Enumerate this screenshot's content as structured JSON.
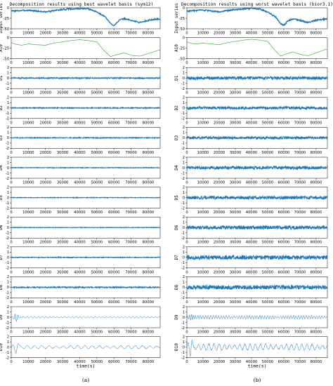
{
  "chart_data": [
    {
      "type": "line",
      "panel_label": "(a)",
      "title": "Decomposition results using best wavelet basis (sym12)",
      "xlabel": "time(s)",
      "xlim": [
        0,
        87000
      ],
      "xticks": [
        10000,
        20000,
        30000,
        40000,
        50000,
        60000,
        70000,
        80000
      ],
      "colors": {
        "signal": "#1f77b4",
        "approximation": "#2ca02c"
      },
      "rows": [
        {
          "name": "Input series",
          "ylim": [
            -50,
            0
          ],
          "yticks": [
            -50,
            -25,
            0
          ],
          "kind": "series",
          "points": [
            [
              0,
              -8
            ],
            [
              5000,
              -7
            ],
            [
              10000,
              -6
            ],
            [
              15000,
              -8
            ],
            [
              20000,
              -10
            ],
            [
              25000,
              -7
            ],
            [
              30000,
              -4
            ],
            [
              35000,
              -3
            ],
            [
              40000,
              -2
            ],
            [
              45000,
              -3
            ],
            [
              50000,
              -10
            ],
            [
              55000,
              -22
            ],
            [
              58000,
              -38
            ],
            [
              60000,
              -42
            ],
            [
              63000,
              -30
            ],
            [
              66000,
              -26
            ],
            [
              70000,
              -30
            ],
            [
              75000,
              -35
            ],
            [
              80000,
              -30
            ],
            [
              85000,
              -27
            ]
          ]
        },
        {
          "name": "A10",
          "ylim": [
            -50,
            0
          ],
          "yticks": [
            -50,
            -25,
            0
          ],
          "kind": "approx",
          "points": [
            [
              0,
              -12
            ],
            [
              3000,
              -16
            ],
            [
              6000,
              -18
            ],
            [
              10000,
              -15
            ],
            [
              15000,
              -17
            ],
            [
              20000,
              -18
            ],
            [
              25000,
              -13
            ],
            [
              30000,
              -10
            ],
            [
              35000,
              -7
            ],
            [
              40000,
              -5
            ],
            [
              45000,
              -7
            ],
            [
              50000,
              -10
            ],
            [
              54000,
              -30
            ],
            [
              58000,
              -45
            ],
            [
              62000,
              -40
            ],
            [
              66000,
              -36
            ],
            [
              70000,
              -42
            ],
            [
              75000,
              -44
            ],
            [
              80000,
              -38
            ],
            [
              86000,
              -30
            ]
          ]
        },
        {
          "name": "D1",
          "ylim": [
            -2,
            2
          ],
          "yticks": [
            -2,
            -1,
            0,
            1,
            2
          ],
          "kind": "noise",
          "amp": 0.12,
          "period": 0
        },
        {
          "name": "D2",
          "ylim": [
            -2,
            2
          ],
          "yticks": [
            -2,
            -1,
            0,
            1,
            2
          ],
          "kind": "noise",
          "amp": 0.1,
          "period": 0
        },
        {
          "name": "D3",
          "ylim": [
            -2,
            2
          ],
          "yticks": [
            -2,
            -1,
            0,
            1,
            2
          ],
          "kind": "noise",
          "amp": 0.09,
          "period": 0
        },
        {
          "name": "D4",
          "ylim": [
            -2,
            2
          ],
          "yticks": [
            -2,
            -1,
            0,
            1,
            2
          ],
          "kind": "noise",
          "amp": 0.07,
          "period": 0
        },
        {
          "name": "D5",
          "ylim": [
            -2,
            2
          ],
          "yticks": [
            -2,
            -1,
            0,
            1,
            2
          ],
          "kind": "noise",
          "amp": 0.06,
          "period": 0
        },
        {
          "name": "D6",
          "ylim": [
            -2,
            2
          ],
          "yticks": [
            -2,
            -1,
            0,
            1,
            2
          ],
          "kind": "noise",
          "amp": 0.06,
          "period": 0
        },
        {
          "name": "D7",
          "ylim": [
            -2,
            2
          ],
          "yticks": [
            -2,
            -1,
            0,
            1,
            2
          ],
          "kind": "noise",
          "amp": 0.08,
          "period": 0
        },
        {
          "name": "D8",
          "ylim": [
            -2,
            2
          ],
          "yticks": [
            -2,
            -1,
            0,
            1,
            2
          ],
          "kind": "noise",
          "amp": 0.12,
          "period": 0
        },
        {
          "name": "D9",
          "ylim": [
            -2,
            2
          ],
          "yticks": [
            -2,
            -1,
            0,
            1,
            2
          ],
          "kind": "osc",
          "amp": 0.15,
          "period": 2200,
          "burst": [
            3000,
            0.9
          ]
        },
        {
          "name": "D10",
          "ylim": [
            -2,
            2
          ],
          "yticks": [
            -2,
            -1,
            0,
            1,
            2
          ],
          "kind": "osc",
          "amp": 0.3,
          "period": 4200,
          "burst": [
            3000,
            1.3
          ]
        }
      ]
    },
    {
      "type": "line",
      "panel_label": "(b)",
      "title": "Decomposition results using worst wavelet basis (bior3.1)",
      "xlabel": "time(s)",
      "xlim": [
        0,
        87000
      ],
      "xticks": [
        10000,
        20000,
        30000,
        40000,
        50000,
        60000,
        70000,
        80000
      ],
      "colors": {
        "signal": "#1f77b4",
        "approximation": "#2ca02c"
      },
      "rows": [
        {
          "name": "Input series",
          "ylim": [
            -50,
            0
          ],
          "yticks": [
            -50,
            -25,
            0
          ],
          "kind": "series",
          "points": [
            [
              0,
              -8
            ],
            [
              5000,
              -7
            ],
            [
              10000,
              -6
            ],
            [
              15000,
              -8
            ],
            [
              20000,
              -10
            ],
            [
              25000,
              -7
            ],
            [
              30000,
              -4
            ],
            [
              35000,
              -3
            ],
            [
              40000,
              -2
            ],
            [
              45000,
              -3
            ],
            [
              50000,
              -10
            ],
            [
              55000,
              -22
            ],
            [
              58000,
              -38
            ],
            [
              60000,
              -42
            ],
            [
              63000,
              -30
            ],
            [
              66000,
              -26
            ],
            [
              70000,
              -30
            ],
            [
              75000,
              -35
            ],
            [
              80000,
              -30
            ],
            [
              85000,
              -27
            ]
          ]
        },
        {
          "name": "A10",
          "ylim": [
            -50,
            0
          ],
          "yticks": [
            -50,
            -25,
            0
          ],
          "kind": "approx",
          "points": [
            [
              0,
              -10
            ],
            [
              3000,
              -14
            ],
            [
              6000,
              -15
            ],
            [
              10000,
              -13
            ],
            [
              15000,
              -15
            ],
            [
              20000,
              -17
            ],
            [
              25000,
              -12
            ],
            [
              30000,
              -9
            ],
            [
              35000,
              -6
            ],
            [
              40000,
              -4
            ],
            [
              45000,
              -6
            ],
            [
              50000,
              -9
            ],
            [
              54000,
              -28
            ],
            [
              58000,
              -44
            ],
            [
              62000,
              -38
            ],
            [
              66000,
              -34
            ],
            [
              70000,
              -40
            ],
            [
              75000,
              -43
            ],
            [
              80000,
              -36
            ],
            [
              86000,
              -28
            ]
          ]
        },
        {
          "name": "D1",
          "ylim": [
            -2,
            2
          ],
          "yticks": [
            -2,
            -1,
            0,
            1,
            2
          ],
          "kind": "noise",
          "amp": 0.3,
          "period": 0
        },
        {
          "name": "D2",
          "ylim": [
            -2,
            2
          ],
          "yticks": [
            -2,
            -1,
            0,
            1,
            2
          ],
          "kind": "noise",
          "amp": 0.28,
          "period": 0
        },
        {
          "name": "D3",
          "ylim": [
            -2,
            2
          ],
          "yticks": [
            -2,
            -1,
            0,
            1,
            2
          ],
          "kind": "noise",
          "amp": 0.26,
          "period": 0
        },
        {
          "name": "D4",
          "ylim": [
            -2,
            2
          ],
          "yticks": [
            -2,
            -1,
            0,
            1,
            2
          ],
          "kind": "noise",
          "amp": 0.3,
          "period": 0
        },
        {
          "name": "D5",
          "ylim": [
            -2,
            2
          ],
          "yticks": [
            -2,
            -1,
            0,
            1,
            2
          ],
          "kind": "noise",
          "amp": 0.32,
          "period": 0
        },
        {
          "name": "D6",
          "ylim": [
            -2,
            2
          ],
          "yticks": [
            -2,
            -1,
            0,
            1,
            2
          ],
          "kind": "noise",
          "amp": 0.34,
          "period": 0
        },
        {
          "name": "D7",
          "ylim": [
            -2,
            2
          ],
          "yticks": [
            -2,
            -1,
            0,
            1,
            2
          ],
          "kind": "noise",
          "amp": 0.4,
          "period": 0
        },
        {
          "name": "D8",
          "ylim": [
            -2,
            2
          ],
          "yticks": [
            -2,
            -1,
            0,
            1,
            2
          ],
          "kind": "noise",
          "amp": 0.4,
          "period": 0
        },
        {
          "name": "D9",
          "ylim": [
            -2,
            2
          ],
          "yticks": [
            -2,
            -1,
            0,
            1,
            2
          ],
          "kind": "osc",
          "amp": 0.35,
          "period": 1600,
          "burst": [
            3000,
            0.9
          ]
        },
        {
          "name": "D10",
          "ylim": [
            -2,
            2
          ],
          "yticks": [
            -2,
            -1,
            0,
            1,
            2
          ],
          "kind": "osc",
          "amp": 0.6,
          "period": 3200,
          "burst": [
            2500,
            1.8
          ]
        }
      ]
    }
  ]
}
